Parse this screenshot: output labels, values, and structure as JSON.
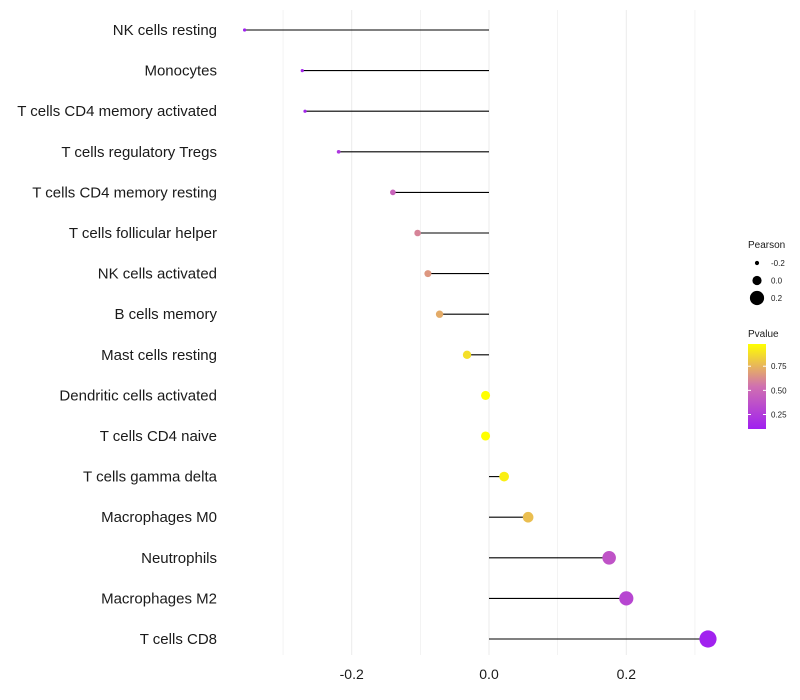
{
  "chart_data": {
    "type": "lollipop",
    "title": "",
    "xlabel": "",
    "ylabel": "",
    "xlim": [
      -0.36,
      0.34
    ],
    "xticks": [
      -0.2,
      0.0,
      0.2
    ],
    "xtick_labels": [
      "-0.2",
      "0.0",
      "0.2"
    ],
    "minor_gridlines": [
      -0.3,
      -0.1,
      0.1,
      0.3
    ],
    "grid": true,
    "series": [
      {
        "category": "NK cells resting",
        "pearson": -0.356,
        "pvalue": 0.07
      },
      {
        "category": "Monocytes",
        "pearson": -0.272,
        "pvalue": 0.14
      },
      {
        "category": "T cells CD4 memory activated",
        "pearson": -0.268,
        "pvalue": 0.13
      },
      {
        "category": "T cells regulatory  Tregs",
        "pearson": -0.219,
        "pvalue": 0.22
      },
      {
        "category": "T cells CD4 memory resting",
        "pearson": -0.14,
        "pvalue": 0.47
      },
      {
        "category": "T cells follicular helper",
        "pearson": -0.104,
        "pvalue": 0.6
      },
      {
        "category": "NK cells activated",
        "pearson": -0.089,
        "pvalue": 0.66
      },
      {
        "category": "B cells memory",
        "pearson": -0.072,
        "pvalue": 0.72
      },
      {
        "category": "Mast cells resting",
        "pearson": -0.032,
        "pvalue": 0.88
      },
      {
        "category": "Dendritic cells activated",
        "pearson": -0.005,
        "pvalue": 0.98
      },
      {
        "category": "T cells CD4 naive",
        "pearson": -0.005,
        "pvalue": 0.98
      },
      {
        "category": "T cells gamma delta",
        "pearson": 0.022,
        "pvalue": 0.93
      },
      {
        "category": "Macrophages M0",
        "pearson": 0.057,
        "pvalue": 0.78
      },
      {
        "category": "Neutrophils",
        "pearson": 0.175,
        "pvalue": 0.38
      },
      {
        "category": "Macrophages M2",
        "pearson": 0.2,
        "pvalue": 0.31
      },
      {
        "category": "T cells CD8",
        "pearson": 0.319,
        "pvalue": 0.11
      }
    ],
    "legend_position": "right",
    "legend": {
      "size": {
        "title": "Pearson",
        "entries": [
          {
            "label": "-0.2",
            "value": -0.2
          },
          {
            "label": "0.0",
            "value": 0.0
          },
          {
            "label": "0.2",
            "value": 0.2
          }
        ]
      },
      "color": {
        "title": "Pvalue",
        "low_color": "#a020f0",
        "mid_color": "#d070b0",
        "high_color": "#ffff00",
        "range": [
          0.1,
          0.98
        ],
        "ticks": [
          {
            "label": "0.75",
            "value": 0.75
          },
          {
            "label": "0.50",
            "value": 0.5
          },
          {
            "label": "0.25",
            "value": 0.25
          }
        ]
      }
    },
    "colors": {
      "stem": "#000000",
      "gridline": "#ebebeb"
    }
  }
}
